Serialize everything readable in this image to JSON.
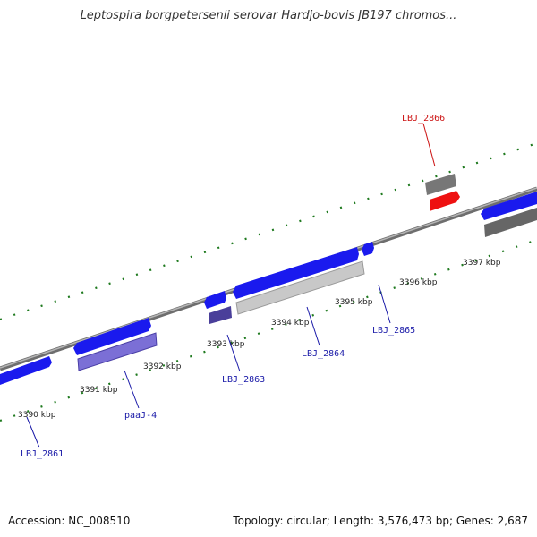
{
  "title": "Leptospira borgpetersenii serovar Hardjo-bovis JB197 chromos...",
  "footer": {
    "accession": "Accession: NC_008510",
    "summary": "Topology: circular; Length: 3,576,473 bp; Genes: 2,687"
  },
  "colors": {
    "forward_gene": "#1a1aee",
    "reverse_gene": "#7b6fd6",
    "gray_gene": "#777777",
    "light_gene": "#c8c8c8",
    "highlight_gene": "#ee1111",
    "tick": "#1f7a1f",
    "label_blue": "#1a1aa8",
    "label_red": "#cc1111",
    "backbone": "#8c8c8c"
  },
  "scale": {
    "unit": "kbp",
    "labels": [
      "3390 kbp",
      "3391 kbp",
      "3392 kbp",
      "3393 kbp",
      "3394 kbp",
      "3395 kbp",
      "3396 kbp",
      "3397 kbp"
    ]
  },
  "genes": [
    {
      "label": "LBJ_2861",
      "highlight": false
    },
    {
      "label": "paaJ-4",
      "highlight": false
    },
    {
      "label": "LBJ_2863",
      "highlight": false
    },
    {
      "label": "LBJ_2864",
      "highlight": false
    },
    {
      "label": "LBJ_2865",
      "highlight": false
    },
    {
      "label": "LBJ_2866",
      "highlight": true
    }
  ]
}
